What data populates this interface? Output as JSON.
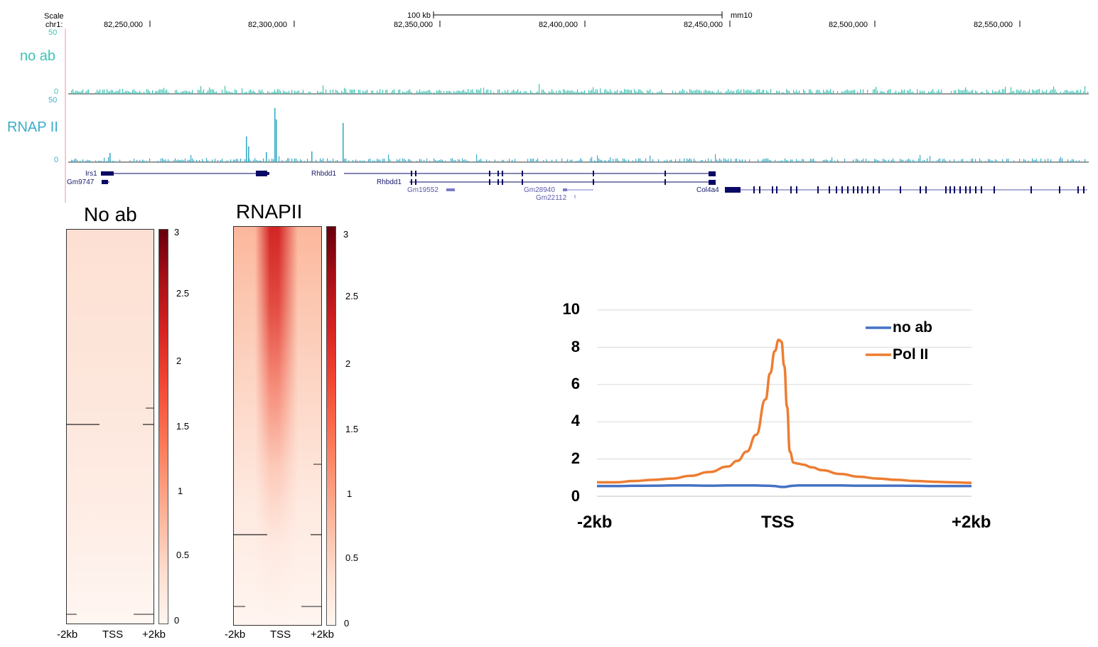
{
  "browser": {
    "scale_label": "Scale",
    "chrom_label": "chr1:",
    "scalebar_label": "100 kb",
    "assembly": "mm10",
    "positions": [
      "82,250,000",
      "82,300,000",
      "82,350,000",
      "82,400,000",
      "82,450,000",
      "82,500,000",
      "82,550,000"
    ],
    "tracks": [
      {
        "name": "no ab",
        "max_label": "50",
        "min_label": "0",
        "color": "#3cc4b4"
      },
      {
        "name": "RNAP II",
        "max_label": "50",
        "min_label": "0",
        "color": "#3aacc8"
      }
    ],
    "genes": [
      "Irs1",
      "Gm9747",
      "Rhbdd1",
      "Rhbdd1",
      "Gm19552",
      "Gm28940",
      "Gm22112",
      "Col4a4"
    ],
    "gene_color": "#0a0a66",
    "gene_light_color": "#7b7bc8"
  },
  "heatmaps": [
    {
      "title": "No ab",
      "x_ticks": [
        "-2kb",
        "TSS",
        "+2kb"
      ],
      "colorbar_ticks": [
        "3",
        "2.5",
        "2",
        "1.5",
        "1",
        "0.5",
        "0"
      ]
    },
    {
      "title": "RNAPII",
      "x_ticks": [
        "-2kb",
        "TSS",
        "+2kb"
      ],
      "colorbar_ticks": [
        "3",
        "2.5",
        "2",
        "1.5",
        "1",
        "0.5",
        "0"
      ]
    }
  ],
  "chart_data": {
    "type": "line",
    "title": "",
    "xlabel": "",
    "ylabel": "",
    "x_ticks": [
      "-2kb",
      "TSS",
      "+2kb"
    ],
    "x": [
      -2000,
      -1800,
      -1600,
      -1400,
      -1200,
      -1000,
      -800,
      -600,
      -500,
      -400,
      -300,
      -200,
      -150,
      -100,
      -60,
      -30,
      0,
      30,
      60,
      100,
      150,
      200,
      300,
      400,
      600,
      800,
      1000,
      1200,
      1400,
      1600,
      1800,
      2000
    ],
    "xlim": [
      -2000,
      2000
    ],
    "ylim": [
      0,
      10
    ],
    "y_ticks": [
      0,
      2,
      4,
      6,
      8,
      10
    ],
    "grid": true,
    "legend_position": "top-right",
    "series": [
      {
        "name": "no ab",
        "color": "#4472c4",
        "values": [
          0.55,
          0.55,
          0.56,
          0.57,
          0.58,
          0.58,
          0.57,
          0.58,
          0.58,
          0.58,
          0.58,
          0.57,
          0.56,
          0.55,
          0.52,
          0.5,
          0.5,
          0.52,
          0.55,
          0.57,
          0.58,
          0.58,
          0.58,
          0.58,
          0.58,
          0.57,
          0.57,
          0.57,
          0.56,
          0.55,
          0.55,
          0.55
        ]
      },
      {
        "name": "Pol II",
        "color": "#ed7d31",
        "values": [
          0.75,
          0.75,
          0.82,
          0.88,
          0.95,
          1.1,
          1.3,
          1.6,
          1.9,
          2.4,
          3.3,
          5.2,
          6.6,
          7.8,
          8.4,
          8.3,
          7.0,
          4.8,
          2.4,
          1.8,
          1.75,
          1.7,
          1.55,
          1.4,
          1.2,
          1.05,
          0.95,
          0.88,
          0.82,
          0.78,
          0.75,
          0.72
        ]
      }
    ]
  }
}
